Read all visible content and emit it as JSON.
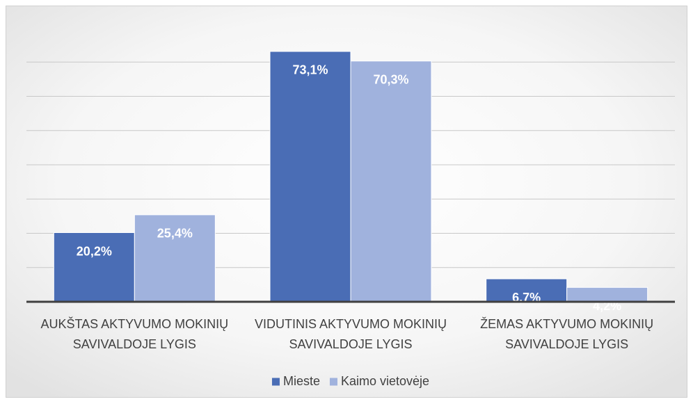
{
  "chart_data": {
    "type": "bar",
    "categories": [
      "AUKŠTAS AKTYVUMO MOKINIŲ SAVIVALDOJE LYGIS",
      "VIDUTINIS AKTYVUMO MOKINIŲ SAVIVALDOJE LYGIS",
      "ŽEMAS AKTYVUMO MOKINIŲ SAVIVALDOJE LYGIS"
    ],
    "series": [
      {
        "name": "Mieste",
        "color": "#4a6db5",
        "values": [
          20.2,
          73.1,
          6.7
        ],
        "value_labels": [
          "20,2%",
          "73,1%",
          "6,7%"
        ]
      },
      {
        "name": "Kaimo vietovėje",
        "color": "#a0b2dd",
        "values": [
          25.4,
          70.3,
          4.2
        ],
        "value_labels": [
          "25,4%",
          "70,3%",
          "4,2%"
        ]
      }
    ],
    "ylim": [
      0,
      80
    ],
    "yticks": [
      0,
      10,
      20,
      30,
      40,
      50,
      60,
      70
    ],
    "grid": true,
    "legend": "bottom"
  }
}
